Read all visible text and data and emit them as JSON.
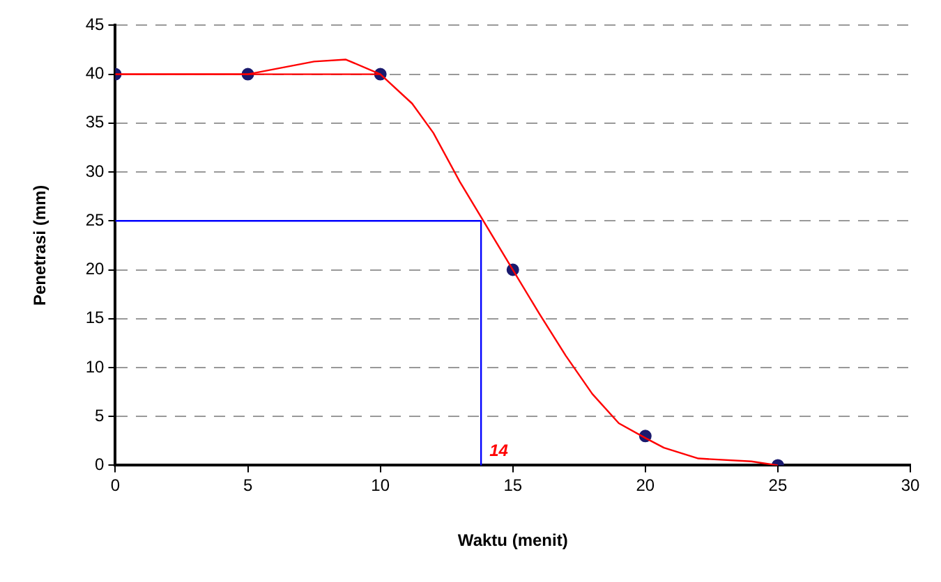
{
  "chart_data": {
    "type": "line",
    "xlabel": "Waktu (menit)",
    "ylabel": "Penetrasi (mm)",
    "xlim": [
      0,
      30
    ],
    "xticks": [
      0,
      5,
      10,
      15,
      20,
      25,
      30
    ],
    "ylim": [
      0,
      45
    ],
    "yticks": [
      0,
      5,
      10,
      15,
      20,
      25,
      30,
      35,
      40,
      45
    ],
    "grid": "y",
    "line_style": "solid",
    "series": [
      {
        "type": "line",
        "color": "#ff0000",
        "marker": "none",
        "x": [
          0,
          5,
          7.5,
          8.7,
          10,
          11.2,
          12,
          13,
          14,
          15,
          16,
          17,
          18,
          19,
          20,
          20.7,
          22,
          24,
          25
        ],
        "values": [
          40,
          40,
          41.3,
          41.5,
          40,
          37,
          34,
          29,
          24.5,
          20,
          15.5,
          11.2,
          7.3,
          4.3,
          2.8,
          1.8,
          0.7,
          0.4,
          0
        ]
      },
      {
        "type": "line",
        "color": "#ff0000",
        "marker": "none",
        "x": [
          0,
          10
        ],
        "values": [
          40,
          40
        ]
      },
      {
        "type": "line",
        "color": "#0000ff",
        "marker": "none",
        "x": [
          0,
          13.8,
          13.8
        ],
        "values": [
          25,
          25,
          0
        ]
      },
      {
        "type": "scatter",
        "color": "#1a1a6e",
        "marker": "circle",
        "x": [
          0,
          5,
          10,
          15,
          20,
          25
        ],
        "values": [
          40,
          40,
          40,
          20,
          3,
          0
        ]
      }
    ],
    "annotations": [
      {
        "text": "14",
        "x": 13.8,
        "y": 0
      }
    ]
  }
}
